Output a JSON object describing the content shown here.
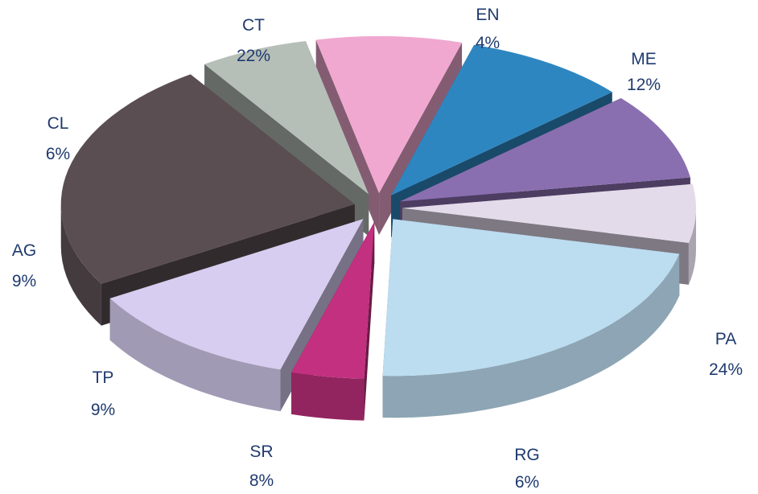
{
  "chart_data": {
    "type": "pie",
    "title": "",
    "legend": "none",
    "slices": [
      {
        "label": "EN",
        "value": 4,
        "display": "4%",
        "color": "#c2307f"
      },
      {
        "label": "ME",
        "value": 12,
        "display": "12%",
        "color": "#d7cdf0"
      },
      {
        "label": "PA",
        "value": 24,
        "display": "24%",
        "color": "#5a4e52"
      },
      {
        "label": "RG",
        "value": 6,
        "display": "6%",
        "color": "#b6bfb7"
      },
      {
        "label": "SR",
        "value": 8,
        "display": "8%",
        "color": "#f0a8d0"
      },
      {
        "label": "TP",
        "value": 9,
        "display": "9%",
        "color": "#2e86c1"
      },
      {
        "label": "AG",
        "value": 9,
        "display": "9%",
        "color": "#8a6fb0"
      },
      {
        "label": "CL",
        "value": 6,
        "display": "6%",
        "color": "#e3dbea"
      },
      {
        "label": "CT",
        "value": 22,
        "display": "22%",
        "color": "#bcdcf0"
      }
    ]
  }
}
